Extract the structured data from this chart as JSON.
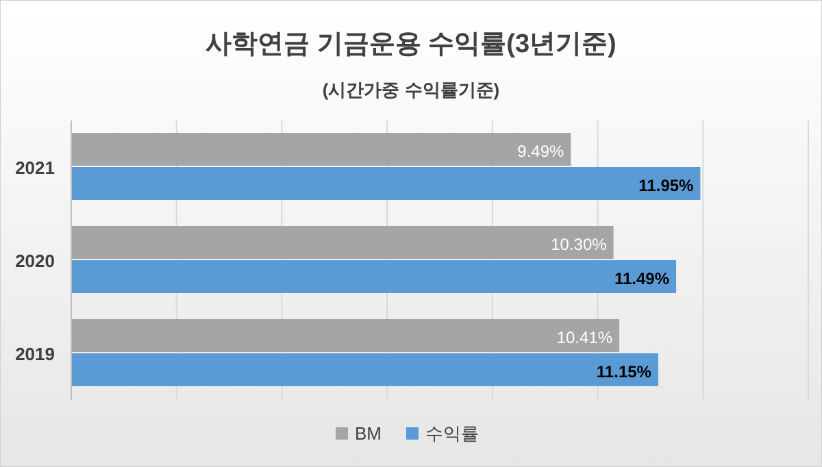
{
  "chart_data": {
    "type": "bar",
    "orientation": "horizontal",
    "title": "사학연금 기금운용 수익률(3년기준)",
    "subtitle": "(시간가중 수익률기준)",
    "categories": [
      "2021",
      "2020",
      "2019"
    ],
    "series": [
      {
        "name": "BM",
        "color": "#a5a5a5",
        "values": [
          9.49,
          10.3,
          10.41
        ],
        "value_labels": [
          "9.49%",
          "10.30%",
          "10.41%"
        ]
      },
      {
        "name": "수익률",
        "color": "#5b9bd5",
        "values": [
          11.95,
          11.49,
          11.15
        ],
        "value_labels": [
          "11.95%",
          "11.49%",
          "11.15%"
        ]
      }
    ],
    "xlim": [
      0,
      14
    ],
    "xticks": [
      {
        "value": 0,
        "label": null
      },
      {
        "value": 2,
        "label": null
      },
      {
        "value": 4,
        "label": null
      },
      {
        "value": 6,
        "label": null
      },
      {
        "value": 8,
        "label": null
      },
      {
        "value": 10,
        "label": null
      },
      {
        "value": 12,
        "label": null
      },
      {
        "value": 14,
        "label": null
      }
    ],
    "tick_labels": "y",
    "grid": "x",
    "legend": "bottom"
  }
}
